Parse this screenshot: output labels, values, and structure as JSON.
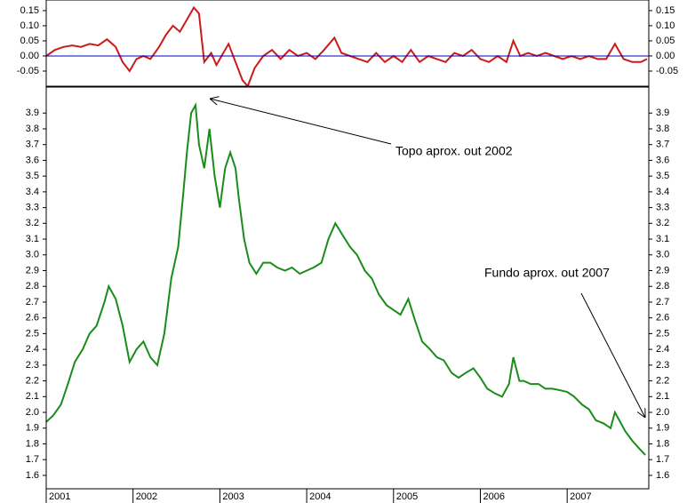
{
  "chart_data": [
    {
      "type": "line",
      "xlim": [
        2001,
        2007.94
      ],
      "ylim": [
        -0.1,
        0.185
      ],
      "yticks": [
        0.15,
        {
          "value": 0.1,
          "label": "0.10"
        },
        0.05,
        {
          "value": 0,
          "label": "0.00"
        },
        -0.05
      ],
      "zero_line_color": "#0000c0",
      "series": [
        {
          "color": "#cc1a1a",
          "x": [
            2001.0,
            2001.1,
            2001.2,
            2001.3,
            2001.4,
            2001.5,
            2001.6,
            2001.7,
            2001.8,
            2001.88,
            2001.96,
            2002.04,
            2002.12,
            2002.2,
            2002.3,
            2002.38,
            2002.46,
            2002.54,
            2002.62,
            2002.7,
            2002.76,
            2002.82,
            2002.9,
            2002.96,
            2003.02,
            2003.1,
            2003.18,
            2003.26,
            2003.32,
            2003.4,
            2003.5,
            2003.6,
            2003.7,
            2003.8,
            2003.9,
            2004.0,
            2004.1,
            2004.2,
            2004.32,
            2004.4,
            2004.5,
            2004.6,
            2004.7,
            2004.8,
            2004.9,
            2005.0,
            2005.1,
            2005.2,
            2005.3,
            2005.4,
            2005.5,
            2005.6,
            2005.7,
            2005.8,
            2005.9,
            2006.0,
            2006.1,
            2006.2,
            2006.3,
            2006.38,
            2006.46,
            2006.55,
            2006.65,
            2006.75,
            2006.85,
            2006.95,
            2007.05,
            2007.15,
            2007.25,
            2007.35,
            2007.45,
            2007.55,
            2007.65,
            2007.75,
            2007.85,
            2007.92
          ],
          "values": [
            0.0,
            0.02,
            0.03,
            0.035,
            0.03,
            0.04,
            0.035,
            0.055,
            0.03,
            -0.02,
            -0.05,
            -0.01,
            0.0,
            -0.01,
            0.03,
            0.07,
            0.1,
            0.08,
            0.12,
            0.16,
            0.14,
            -0.02,
            0.01,
            -0.03,
            0.0,
            0.04,
            -0.02,
            -0.08,
            -0.1,
            -0.04,
            0.0,
            0.02,
            -0.01,
            0.02,
            0.0,
            0.01,
            -0.01,
            0.02,
            0.06,
            0.01,
            0.0,
            -0.01,
            -0.02,
            0.01,
            -0.02,
            0.0,
            -0.02,
            0.02,
            -0.02,
            0.0,
            -0.01,
            -0.02,
            0.01,
            0.0,
            0.02,
            -0.01,
            -0.02,
            0.0,
            -0.02,
            0.05,
            0.0,
            0.01,
            0.0,
            0.01,
            0.0,
            -0.01,
            0.0,
            -0.01,
            0.0,
            -0.01,
            -0.01,
            0.04,
            -0.01,
            -0.02,
            -0.02,
            -0.01
          ]
        }
      ]
    },
    {
      "type": "line",
      "xlim": [
        2001,
        2007.94
      ],
      "ylim": [
        1.515,
        4.065
      ],
      "xticks": [
        2001,
        2002,
        2003,
        2004,
        2005,
        2006,
        2007
      ],
      "yticks": [
        3.9,
        3.8,
        3.7,
        3.6,
        3.5,
        3.4,
        3.3,
        3.2,
        3.1,
        {
          "value": 3,
          "label": "3.0"
        },
        2.9,
        2.8,
        2.7,
        2.6,
        2.5,
        2.4,
        2.3,
        2.2,
        2.1,
        {
          "value": 2,
          "label": "2.0"
        },
        1.9,
        1.8,
        1.7,
        1.6
      ],
      "annotations": [
        "Topo aprox. out 2002",
        "Fundo aprox. out 2007"
      ],
      "series": [
        {
          "color": "#1a8c1a",
          "x": [
            2001.0,
            2001.08,
            2001.17,
            2001.25,
            2001.33,
            2001.42,
            2001.5,
            2001.58,
            2001.67,
            2001.72,
            2001.8,
            2001.88,
            2001.96,
            2002.04,
            2002.12,
            2002.2,
            2002.28,
            2002.36,
            2002.44,
            2002.52,
            2002.58,
            2002.62,
            2002.67,
            2002.72,
            2002.76,
            2002.82,
            2002.88,
            2002.94,
            2003.0,
            2003.06,
            2003.12,
            2003.18,
            2003.22,
            2003.28,
            2003.34,
            2003.42,
            2003.5,
            2003.58,
            2003.66,
            2003.75,
            2003.83,
            2003.92,
            2004.0,
            2004.08,
            2004.17,
            2004.25,
            2004.33,
            2004.42,
            2004.5,
            2004.58,
            2004.67,
            2004.75,
            2004.83,
            2004.92,
            2005.0,
            2005.08,
            2005.17,
            2005.25,
            2005.33,
            2005.42,
            2005.5,
            2005.58,
            2005.67,
            2005.75,
            2005.83,
            2005.92,
            2006.0,
            2006.08,
            2006.17,
            2006.25,
            2006.33,
            2006.38,
            2006.45,
            2006.5,
            2006.58,
            2006.67,
            2006.75,
            2006.83,
            2006.92,
            2007.0,
            2007.08,
            2007.17,
            2007.25,
            2007.33,
            2007.42,
            2007.5,
            2007.55,
            2007.6,
            2007.67,
            2007.75,
            2007.83,
            2007.9
          ],
          "values": [
            1.94,
            1.98,
            2.05,
            2.18,
            2.32,
            2.4,
            2.5,
            2.55,
            2.7,
            2.8,
            2.72,
            2.55,
            2.32,
            2.4,
            2.45,
            2.35,
            2.3,
            2.5,
            2.85,
            3.05,
            3.4,
            3.65,
            3.9,
            3.95,
            3.7,
            3.55,
            3.8,
            3.5,
            3.3,
            3.55,
            3.65,
            3.55,
            3.35,
            3.1,
            2.95,
            2.88,
            2.95,
            2.95,
            2.92,
            2.9,
            2.92,
            2.88,
            2.9,
            2.92,
            2.95,
            3.1,
            3.2,
            3.12,
            3.05,
            3.0,
            2.9,
            2.85,
            2.75,
            2.68,
            2.65,
            2.62,
            2.72,
            2.58,
            2.45,
            2.4,
            2.35,
            2.33,
            2.25,
            2.22,
            2.25,
            2.28,
            2.22,
            2.15,
            2.12,
            2.1,
            2.18,
            2.35,
            2.2,
            2.2,
            2.18,
            2.18,
            2.15,
            2.15,
            2.14,
            2.13,
            2.1,
            2.05,
            2.02,
            1.95,
            1.93,
            1.9,
            2.0,
            1.95,
            1.88,
            1.82,
            1.77,
            1.73
          ]
        }
      ]
    }
  ]
}
